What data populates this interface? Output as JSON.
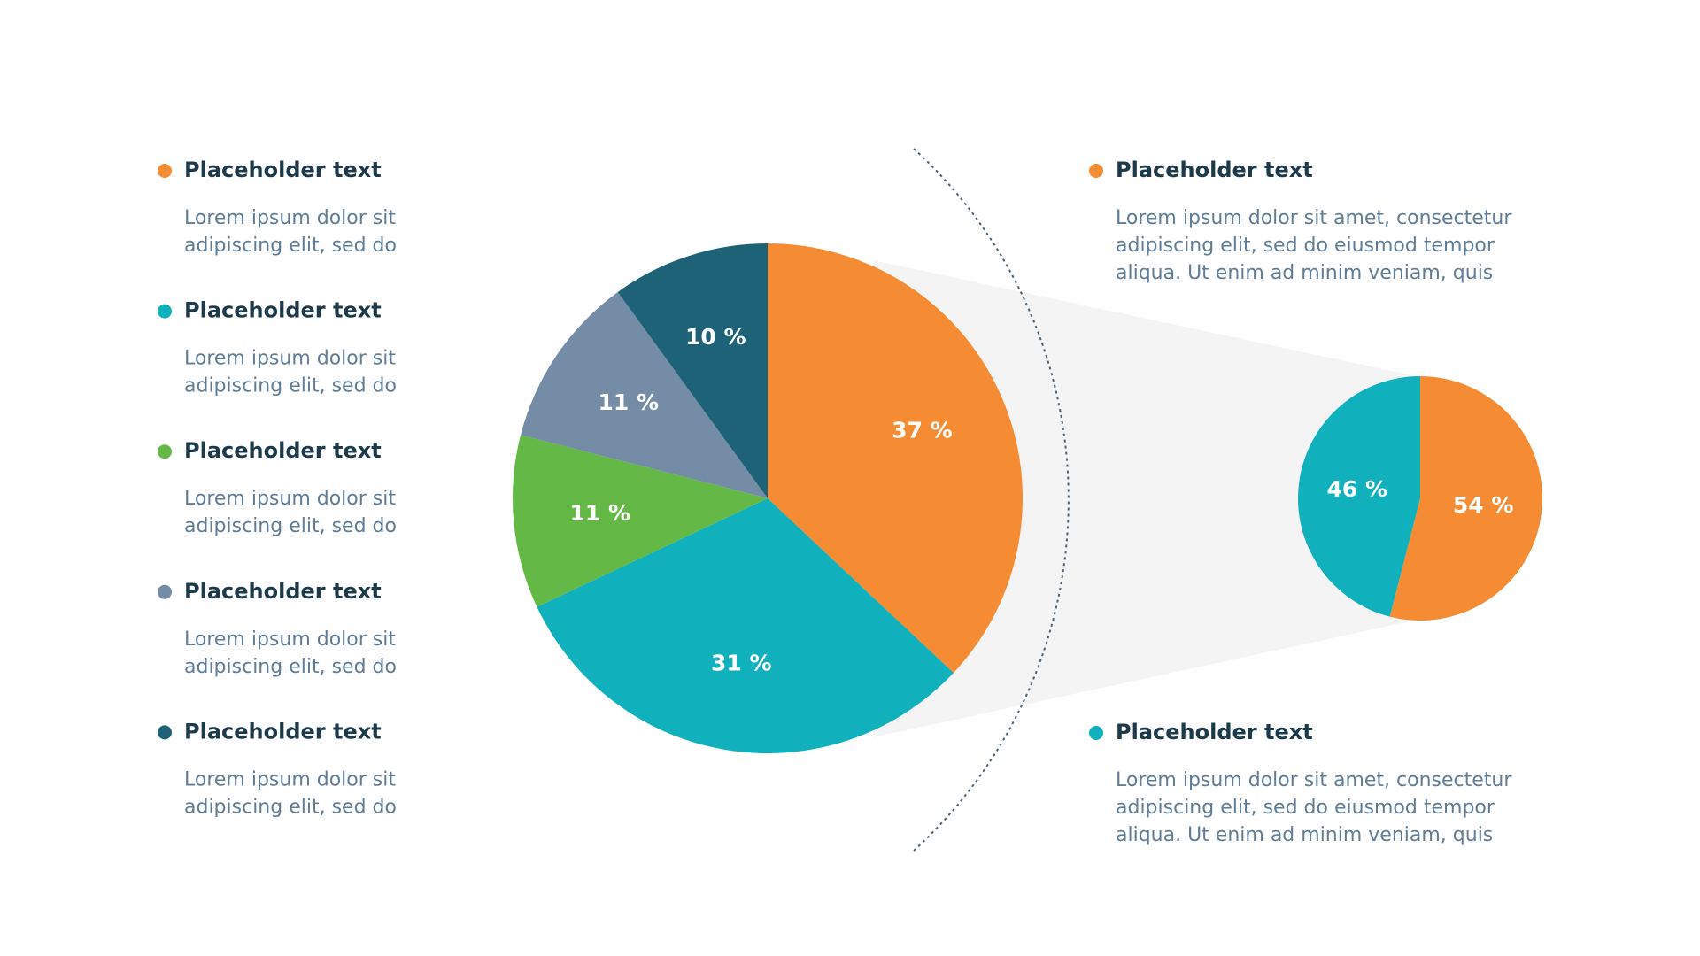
{
  "chart_data": [
    {
      "type": "pie",
      "categories": [
        "Placeholder text",
        "Placeholder text",
        "Placeholder text",
        "Placeholder text",
        "Placeholder text"
      ],
      "descriptions": [
        [
          "Lorem ipsum dolor sit",
          "adipiscing elit, sed do"
        ],
        [
          "Lorem ipsum dolor sit",
          "adipiscing elit, sed do"
        ],
        [
          "Lorem ipsum dolor sit",
          "adipiscing elit, sed do"
        ],
        [
          "Lorem ipsum dolor sit",
          "adipiscing elit, sed do"
        ],
        [
          "Lorem ipsum dolor sit",
          "adipiscing elit, sed do"
        ]
      ],
      "values": [
        37,
        31,
        11,
        11,
        10
      ],
      "value_labels": [
        "37 %",
        "31 %",
        "11 %",
        "11 %",
        "10 %"
      ],
      "colors": [
        "#f58b33",
        "#10b1bc",
        "#63b846",
        "#748ca5",
        "#1d6277"
      ]
    },
    {
      "type": "pie",
      "categories": [
        "Placeholder text",
        "Placeholder text"
      ],
      "descriptions": [
        [
          "Lorem ipsum dolor sit amet, consectetur",
          "adipiscing elit, sed do eiusmod tempor",
          "aliqua. Ut enim ad minim veniam, quis"
        ],
        [
          "Lorem ipsum dolor sit amet, consectetur",
          "adipiscing elit, sed do eiusmod tempor",
          "aliqua. Ut enim ad minim veniam, quis"
        ]
      ],
      "values": [
        54,
        46
      ],
      "value_labels": [
        "54 %",
        "46 %"
      ],
      "colors": [
        "#f58b33",
        "#10b1bc"
      ]
    }
  ]
}
